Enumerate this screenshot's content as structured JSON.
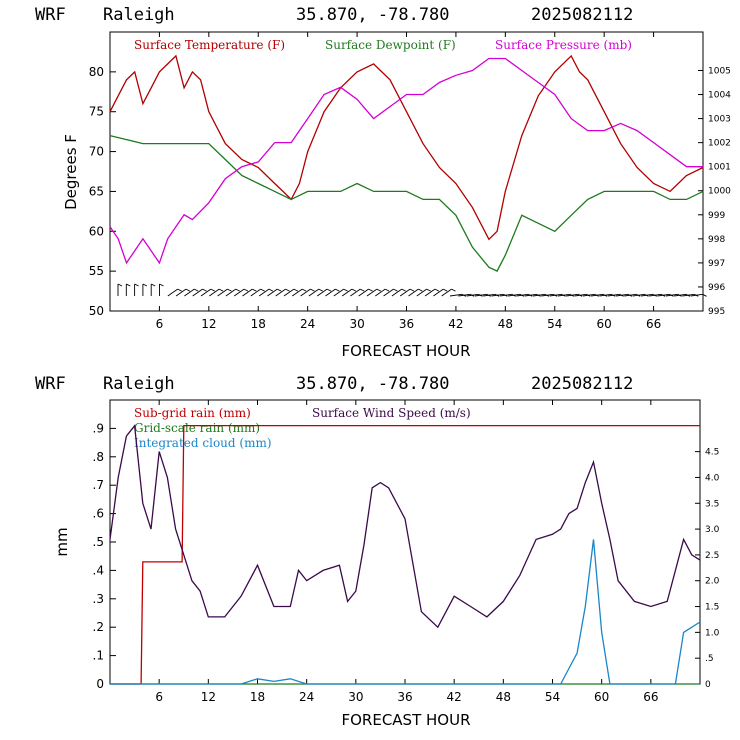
{
  "colors": {
    "temp": "#b00000",
    "dew": "#1e7a1e",
    "pres": "#d400d4",
    "subgrid": "#c00000",
    "grid": "#1e7a1e",
    "cloud": "#1a86c8",
    "wind": "#3a0a4a",
    "axis": "#000000"
  },
  "chart_data": [
    {
      "type": "line",
      "header": {
        "model": "WRF",
        "site": "Raleigh",
        "coords": "35.870, -78.780",
        "run": "2025082112"
      },
      "xlabel": "FORECAST HOUR",
      "ylabel": "Degrees F",
      "xlim": [
        0,
        72
      ],
      "ylim": [
        50,
        85
      ],
      "y2lim": [
        995,
        1006.6
      ],
      "xticks": [
        "6",
        "12",
        "18",
        "24",
        "30",
        "36",
        "42",
        "48",
        "54",
        "60",
        "66"
      ],
      "yticks": [
        "50",
        "55",
        "60",
        "65",
        "70",
        "75",
        "80"
      ],
      "y2ticks": [
        "995",
        "996",
        "997",
        "998",
        "999",
        "1000",
        "1001",
        "1002",
        "1003",
        "1004",
        "1005"
      ],
      "legend": [
        "Surface Temperature (F)",
        "Surface Dewpoint (F)",
        "Surface Pressure (mb)"
      ],
      "series": [
        {
          "name": "Surface Temperature (F)",
          "axis": "left",
          "x": [
            0,
            1,
            2,
            3,
            4,
            5,
            6,
            7,
            8,
            9,
            10,
            11,
            12,
            14,
            16,
            18,
            20,
            21,
            22,
            23,
            24,
            26,
            28,
            30,
            32,
            34,
            36,
            38,
            40,
            42,
            44,
            46,
            47,
            48,
            50,
            52,
            54,
            56,
            57,
            58,
            60,
            62,
            64,
            66,
            68,
            70,
            72
          ],
          "y": [
            75,
            77,
            79,
            80,
            76,
            78,
            80,
            81,
            82,
            78,
            80,
            79,
            75,
            71,
            69,
            68,
            66,
            65,
            64,
            66,
            70,
            75,
            78,
            80,
            81,
            79,
            75,
            71,
            68,
            66,
            63,
            59,
            60,
            65,
            72,
            77,
            80,
            82,
            80,
            79,
            75,
            71,
            68,
            66,
            65,
            67,
            68
          ]
        },
        {
          "name": "Surface Dewpoint (F)",
          "axis": "left",
          "x": [
            0,
            2,
            4,
            6,
            8,
            10,
            12,
            14,
            16,
            18,
            20,
            22,
            24,
            26,
            28,
            30,
            32,
            34,
            36,
            38,
            40,
            42,
            44,
            46,
            47,
            48,
            50,
            52,
            54,
            56,
            58,
            60,
            62,
            64,
            66,
            68,
            70,
            72
          ],
          "y": [
            72,
            71.5,
            71,
            71,
            71,
            71,
            71,
            69,
            67,
            66,
            65,
            64,
            65,
            65,
            65,
            66,
            65,
            65,
            65,
            64,
            64,
            62,
            58,
            55.5,
            55,
            57,
            62,
            61,
            60,
            62,
            64,
            65,
            65,
            65,
            65,
            64,
            64,
            65
          ]
        },
        {
          "name": "Surface Pressure (mb)",
          "axis": "right",
          "x": [
            0,
            1,
            2,
            3,
            4,
            5,
            6,
            7,
            8,
            9,
            10,
            12,
            14,
            16,
            18,
            20,
            22,
            24,
            26,
            28,
            30,
            32,
            34,
            36,
            38,
            40,
            42,
            44,
            46,
            48,
            50,
            52,
            54,
            56,
            58,
            60,
            62,
            64,
            66,
            68,
            70,
            72
          ],
          "y": [
            998.5,
            998,
            997,
            997.5,
            998,
            997.5,
            997,
            998,
            998.5,
            999,
            998.8,
            999.5,
            1000.5,
            1001,
            1001.2,
            1002,
            1002,
            1003,
            1004,
            1004.3,
            1003.8,
            1003,
            1003.5,
            1004,
            1004,
            1004.5,
            1004.8,
            1005,
            1005.5,
            1005.5,
            1005,
            1004.5,
            1004,
            1003,
            1002.5,
            1002.5,
            1002.8,
            1002.5,
            1002,
            1001.5,
            1001,
            1001
          ]
        }
      ]
    },
    {
      "type": "line",
      "header": {
        "model": "WRF",
        "site": "Raleigh",
        "coords": "35.870, -78.780",
        "run": "2025082112"
      },
      "xlabel": "FORECAST HOUR",
      "ylabel": "mm",
      "xlim": [
        0,
        72
      ],
      "ylim": [
        0,
        1.0
      ],
      "y2lim": [
        0,
        5.5
      ],
      "xticks": [
        "6",
        "12",
        "18",
        "24",
        "30",
        "36",
        "42",
        "48",
        "54",
        "60",
        "66"
      ],
      "yticks": [
        "0",
        ".1",
        ".2",
        ".3",
        ".4",
        ".5",
        ".6",
        ".7",
        ".8",
        ".9"
      ],
      "y2ticks": [
        "0",
        ".5",
        "1.0",
        "1.5",
        "2.0",
        "2.5",
        "3.0",
        "3.5",
        "4.0",
        "4.5"
      ],
      "legend": [
        "Sub-grid rain (mm)",
        "Grid-scale rain (mm)",
        "Integrated cloud (mm)",
        "Surface Wind Speed (m/s)"
      ],
      "series": [
        {
          "name": "Sub-grid rain (mm)",
          "axis": "left",
          "x": [
            0,
            3.8,
            4,
            8.8,
            9,
            72
          ],
          "y": [
            0,
            0,
            0.43,
            0.43,
            0.91,
            0.91
          ]
        },
        {
          "name": "Grid-scale rain (mm)",
          "axis": "left",
          "x": [
            0,
            72
          ],
          "y": [
            0,
            0
          ]
        },
        {
          "name": "Integrated cloud (mm)",
          "axis": "right",
          "x": [
            0,
            16,
            18,
            20,
            22,
            24,
            55,
            56,
            57,
            58,
            59,
            60,
            61,
            69,
            70,
            71,
            72
          ],
          "y": [
            0,
            0,
            0.1,
            0.05,
            0.1,
            0,
            0,
            0.3,
            0.6,
            1.5,
            2.8,
            1.0,
            0,
            0,
            1.0,
            1.1,
            1.2
          ]
        },
        {
          "name": "Surface Wind Speed (m/s)",
          "axis": "right",
          "x": [
            0,
            1,
            2,
            3,
            4,
            5,
            6,
            7,
            8,
            9,
            10,
            11,
            12,
            14,
            16,
            18,
            20,
            22,
            23,
            24,
            26,
            28,
            29,
            30,
            31,
            32,
            33,
            34,
            36,
            38,
            40,
            42,
            44,
            46,
            48,
            50,
            52,
            54,
            55,
            56,
            57,
            58,
            59,
            60,
            61,
            62,
            64,
            66,
            68,
            69,
            70,
            71,
            72
          ],
          "y": [
            2.8,
            4.0,
            4.8,
            5.0,
            3.5,
            3.0,
            4.5,
            4.0,
            3.0,
            2.5,
            2.0,
            1.8,
            1.3,
            1.3,
            1.7,
            2.3,
            1.5,
            1.5,
            2.2,
            2.0,
            2.2,
            2.3,
            1.6,
            1.8,
            2.7,
            3.8,
            3.9,
            3.8,
            3.2,
            1.4,
            1.1,
            1.7,
            1.5,
            1.3,
            1.6,
            2.1,
            2.8,
            2.9,
            3.0,
            3.3,
            3.4,
            3.9,
            4.3,
            3.5,
            2.8,
            2.0,
            1.6,
            1.5,
            1.6,
            2.2,
            2.8,
            2.5,
            2.4
          ]
        }
      ]
    }
  ]
}
